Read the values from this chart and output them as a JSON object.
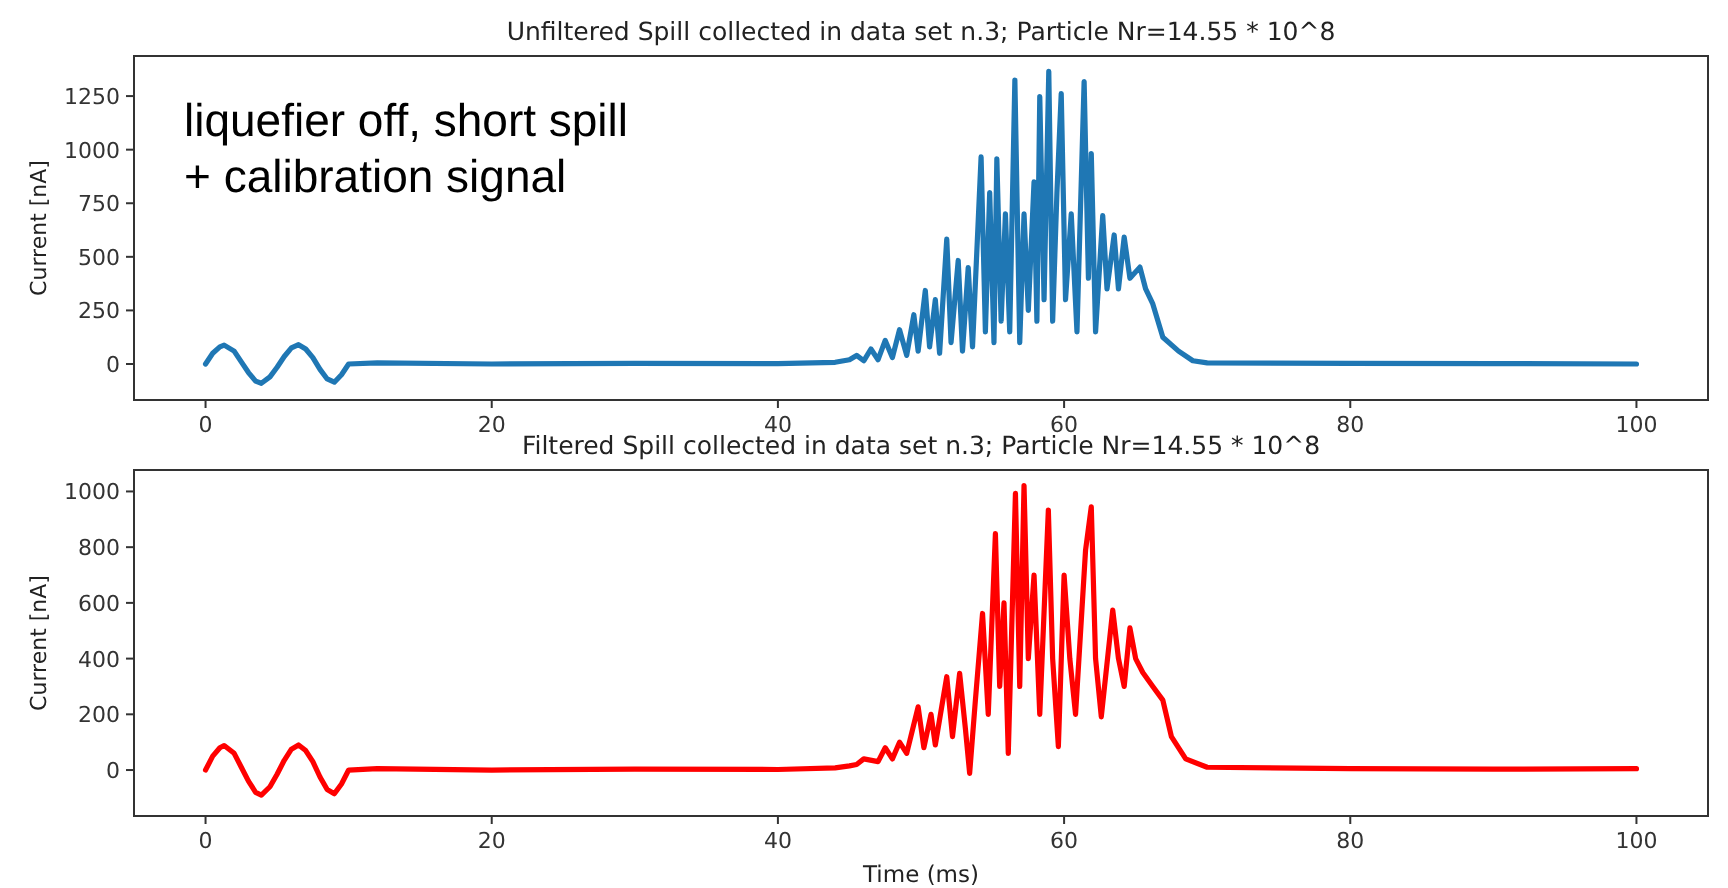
{
  "chart_data": [
    {
      "type": "line",
      "title": "Unfiltered Spill collected in data set n.3; Particle Nr=14.55 * 10^8",
      "ylabel": "Current [nA]",
      "annotations": [
        "liquefier off, short spill\n+ calibration signal"
      ],
      "xlim": [
        -5,
        105
      ],
      "xticks": [
        0,
        20,
        40,
        60,
        80,
        100
      ],
      "ylim": [
        -168,
        1437
      ],
      "yticks": [
        0,
        250,
        500,
        750,
        1000,
        1250
      ],
      "grid": false,
      "series": [
        {
          "color": "#1f77b4",
          "x": [
            0,
            0.5,
            1,
            1.3,
            2,
            2.5,
            3,
            3.5,
            3.9,
            4.5,
            5,
            5.5,
            6,
            6.5,
            7,
            7.5,
            8,
            8.5,
            9,
            9.5,
            10,
            12,
            20,
            30,
            40,
            44,
            45,
            45.5,
            46,
            46.5,
            47,
            47.5,
            48,
            48.5,
            49,
            49.5,
            49.8,
            50.3,
            50.6,
            51,
            51.3,
            51.8,
            52.1,
            52.6,
            52.9,
            53.3,
            53.6,
            54.2,
            54.5,
            54.8,
            55.1,
            55.3,
            55.6,
            55.9,
            56.2,
            56.56,
            56.9,
            57.2,
            57.5,
            57.9,
            58.1,
            58.3,
            58.6,
            58.93,
            59.2,
            59.5,
            59.8,
            60.1,
            60.5,
            60.9,
            61.4,
            61.7,
            61.9,
            62.2,
            62.7,
            63,
            63.5,
            63.8,
            64.2,
            64.6,
            65.3,
            65.7,
            66.2,
            66.9,
            68,
            69,
            70,
            80,
            90,
            100
          ],
          "values": [
            0,
            50,
            80,
            88,
            60,
            10,
            -40,
            -80,
            -90,
            -60,
            -15,
            35,
            75,
            90,
            70,
            30,
            -25,
            -70,
            -85,
            -50,
            0,
            5,
            0,
            3,
            2,
            8,
            20,
            40,
            15,
            70,
            20,
            110,
            30,
            160,
            40,
            230,
            60,
            343,
            80,
            300,
            50,
            583,
            100,
            483,
            60,
            450,
            80,
            966,
            150,
            800,
            100,
            957,
            200,
            700,
            150,
            1325,
            100,
            700,
            250,
            850,
            200,
            1247,
            300,
            1365,
            200,
            800,
            1262,
            300,
            700,
            150,
            1318,
            400,
            982,
            150,
            692,
            350,
            602,
            350,
            592,
            400,
            452,
            350,
            280,
            125,
            60,
            15,
            5,
            3,
            2,
            0
          ]
        }
      ]
    },
    {
      "type": "line",
      "title": "Filtered Spill collected in data set n.3; Particle Nr=14.55 * 10^8",
      "xlabel": "Time (ms)",
      "ylabel": "Current [nA]",
      "xlim": [
        -5,
        105
      ],
      "xticks": [
        0,
        20,
        40,
        60,
        80,
        100
      ],
      "ylim": [
        -165,
        1077
      ],
      "yticks": [
        0,
        200,
        400,
        600,
        800,
        1000
      ],
      "grid": false,
      "series": [
        {
          "color": "#ff0000",
          "x": [
            0,
            0.5,
            1,
            1.3,
            2,
            2.5,
            3,
            3.5,
            3.9,
            4.5,
            5,
            5.5,
            6,
            6.5,
            7,
            7.5,
            8,
            8.5,
            9,
            9.5,
            10,
            12,
            20,
            30,
            40,
            44,
            45,
            45.5,
            46,
            47,
            47.5,
            48,
            48.5,
            49,
            49.8,
            50.2,
            50.7,
            51,
            51.8,
            52.2,
            52.7,
            53.1,
            53.4,
            53.8,
            54.3,
            54.7,
            55.2,
            55.5,
            55.8,
            56.1,
            56.6,
            56.9,
            57.2,
            57.5,
            57.9,
            58.3,
            58.9,
            59.2,
            59.6,
            60,
            60.4,
            60.8,
            61.5,
            61.9,
            62.2,
            62.6,
            63.4,
            63.8,
            64.2,
            64.6,
            65,
            65.5,
            66.2,
            66.9,
            67.5,
            68.5,
            70,
            80,
            90,
            100
          ],
          "values": [
            0,
            50,
            80,
            88,
            60,
            10,
            -40,
            -80,
            -90,
            -60,
            -15,
            35,
            75,
            90,
            70,
            30,
            -25,
            -70,
            -85,
            -50,
            0,
            5,
            0,
            3,
            2,
            8,
            15,
            20,
            40,
            30,
            80,
            40,
            100,
            60,
            227,
            80,
            200,
            90,
            335,
            120,
            347,
            150,
            -12,
            250,
            562,
            200,
            849,
            300,
            600,
            60,
            993,
            300,
            1021,
            400,
            700,
            200,
            933,
            400,
            84,
            700,
            400,
            200,
            789,
            945,
            400,
            191,
            574,
            400,
            300,
            510,
            400,
            350,
            300,
            251,
            120,
            40,
            10,
            5,
            3,
            5
          ]
        }
      ]
    }
  ]
}
